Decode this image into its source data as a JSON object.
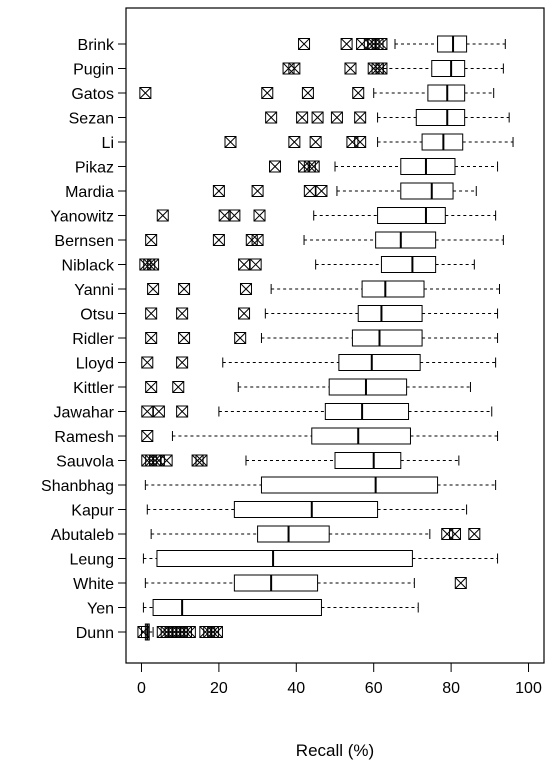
{
  "chart_data": {
    "type": "boxplot",
    "orientation": "horizontal",
    "xlabel": "Recall (%)",
    "xlim": [
      -4,
      104
    ],
    "xticks": [
      0,
      20,
      40,
      60,
      80,
      100
    ],
    "xtick_labels": [
      "0",
      "20",
      "40",
      "60",
      "80",
      "100"
    ],
    "grid": false,
    "legend": "none",
    "categories": [
      "Brink",
      "Pugin",
      "Gatos",
      "Sezan",
      "Li",
      "Pikaz",
      "Mardia",
      "Yanowitz",
      "Bernsen",
      "Niblack",
      "Yanni",
      "Otsu",
      "Ridler",
      "Lloyd",
      "Kittler",
      "Jawahar",
      "Ramesh",
      "Sauvola",
      "Shanbhag",
      "Kapur",
      "Abutaleb",
      "Leung",
      "White",
      "Yen",
      "Dunn"
    ],
    "boxes": [
      {
        "name": "Brink",
        "whisker_low": 65.5,
        "q1": 76.5,
        "median": 80.5,
        "q3": 84,
        "whisker_high": 94,
        "outliers": [
          42,
          53,
          57,
          59,
          60,
          61,
          62
        ]
      },
      {
        "name": "Pugin",
        "whisker_low": 62.5,
        "q1": 75,
        "median": 80,
        "q3": 83.5,
        "whisker_high": 93.5,
        "outliers": [
          38,
          39.5,
          54,
          60,
          61,
          62
        ]
      },
      {
        "name": "Gatos",
        "whisker_low": 60,
        "q1": 74,
        "median": 79,
        "q3": 83.5,
        "whisker_high": 91,
        "outliers": [
          1,
          32.5,
          43,
          56
        ]
      },
      {
        "name": "Sezan",
        "whisker_low": 61,
        "q1": 71,
        "median": 79,
        "q3": 83.5,
        "whisker_high": 95,
        "outliers": [
          33.5,
          41.5,
          45.5,
          50.5,
          56.5
        ]
      },
      {
        "name": "Li",
        "whisker_low": 61,
        "q1": 72.5,
        "median": 78,
        "q3": 83,
        "whisker_high": 96,
        "outliers": [
          23,
          39.5,
          45,
          54.5,
          56.5
        ]
      },
      {
        "name": "Pikaz",
        "whisker_low": 50,
        "q1": 67,
        "median": 73.5,
        "q3": 81,
        "whisker_high": 92,
        "outliers": [
          34.5,
          42,
          43.5,
          44.5
        ]
      },
      {
        "name": "Mardia",
        "whisker_low": 50.5,
        "q1": 67,
        "median": 75,
        "q3": 80.5,
        "whisker_high": 86.5,
        "outliers": [
          20,
          30,
          43.5,
          46.5
        ]
      },
      {
        "name": "Yanowitz",
        "whisker_low": 44.5,
        "q1": 61,
        "median": 73.5,
        "q3": 78.5,
        "whisker_high": 91.5,
        "outliers": [
          5.5,
          21.5,
          24,
          30.5
        ]
      },
      {
        "name": "Bernsen",
        "whisker_low": 42,
        "q1": 60.5,
        "median": 67,
        "q3": 76,
        "whisker_high": 93.5,
        "outliers": [
          2.5,
          20,
          28.5,
          30
        ]
      },
      {
        "name": "Niblack",
        "whisker_low": 45,
        "q1": 62,
        "median": 70,
        "q3": 76,
        "whisker_high": 86,
        "outliers": [
          1,
          2,
          3,
          26.5,
          29.5
        ]
      },
      {
        "name": "Yanni",
        "whisker_low": 33.5,
        "q1": 57,
        "median": 63,
        "q3": 73,
        "whisker_high": 92.5,
        "outliers": [
          3,
          11,
          27
        ]
      },
      {
        "name": "Otsu",
        "whisker_low": 32,
        "q1": 56,
        "median": 62,
        "q3": 72.5,
        "whisker_high": 92,
        "outliers": [
          2.5,
          10.5,
          26.5
        ]
      },
      {
        "name": "Ridler",
        "whisker_low": 31,
        "q1": 54.5,
        "median": 61.5,
        "q3": 72.5,
        "whisker_high": 92,
        "outliers": [
          2.5,
          11,
          25.5
        ]
      },
      {
        "name": "Lloyd",
        "whisker_low": 21,
        "q1": 51,
        "median": 59.5,
        "q3": 72,
        "whisker_high": 91.5,
        "outliers": [
          1.5,
          10.5
        ]
      },
      {
        "name": "Kittler",
        "whisker_low": 25,
        "q1": 48.5,
        "median": 58,
        "q3": 68.5,
        "whisker_high": 85,
        "outliers": [
          2.5,
          9.5
        ]
      },
      {
        "name": "Jawahar",
        "whisker_low": 20,
        "q1": 47.5,
        "median": 57,
        "q3": 69,
        "whisker_high": 90.5,
        "outliers": [
          1.5,
          4.5,
          10.5
        ]
      },
      {
        "name": "Ramesh",
        "whisker_low": 8,
        "q1": 44,
        "median": 56,
        "q3": 69.5,
        "whisker_high": 92,
        "outliers": [
          1.5
        ]
      },
      {
        "name": "Sauvola",
        "whisker_low": 27,
        "q1": 50,
        "median": 60,
        "q3": 67,
        "whisker_high": 82,
        "outliers": [
          1.5,
          2.5,
          3.5,
          4.5,
          6.5,
          14.5,
          15.5
        ]
      },
      {
        "name": "Shanbhag",
        "whisker_low": 1,
        "q1": 31,
        "median": 60.5,
        "q3": 76.5,
        "whisker_high": 91.5,
        "outliers": []
      },
      {
        "name": "Kapur",
        "whisker_low": 1.5,
        "q1": 24,
        "median": 44,
        "q3": 61,
        "whisker_high": 84,
        "outliers": []
      },
      {
        "name": "Abutaleb",
        "whisker_low": 2.5,
        "q1": 30,
        "median": 38,
        "q3": 48.5,
        "whisker_high": 74.5,
        "outliers": [
          79,
          81,
          86
        ]
      },
      {
        "name": "Leung",
        "whisker_low": 0.5,
        "q1": 4,
        "median": 34,
        "q3": 70,
        "whisker_high": 92,
        "outliers": []
      },
      {
        "name": "White",
        "whisker_low": 1,
        "q1": 24,
        "median": 33.5,
        "q3": 45.5,
        "whisker_high": 70.5,
        "outliers": [
          82.5
        ]
      },
      {
        "name": "Yen",
        "whisker_low": 0.5,
        "q1": 3,
        "median": 10.5,
        "q3": 46.5,
        "whisker_high": 71.5,
        "outliers": []
      },
      {
        "name": "Dunn",
        "whisker_low": 0,
        "q1": 1,
        "median": 1.5,
        "q3": 2,
        "whisker_high": 3,
        "outliers": [
          0.5,
          5.5,
          6.5,
          7.5,
          8.5,
          9.5,
          10.5,
          11.5,
          12.5,
          16.5,
          17.5,
          18.5,
          19.5
        ]
      }
    ]
  }
}
